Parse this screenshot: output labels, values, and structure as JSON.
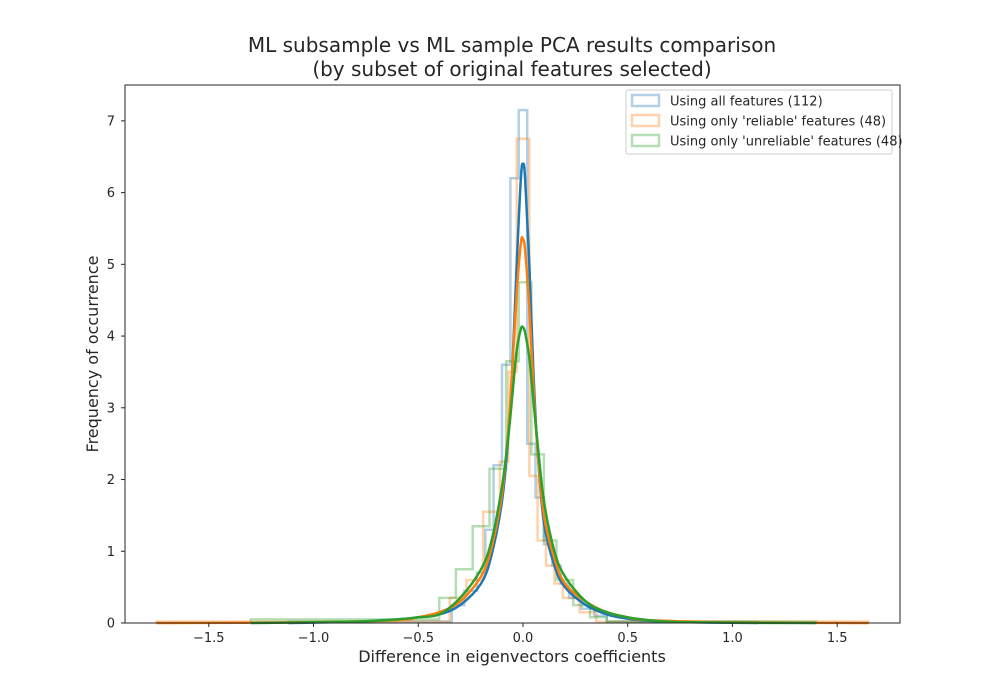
{
  "chart_data": {
    "type": "line",
    "title": [
      "ML subsample vs ML sample PCA results comparison",
      "(by subset of original features selected)"
    ],
    "xlabel": "Difference in eigenvectors coefficients",
    "ylabel": "Frequency of occurrence",
    "xlim": [
      -1.9,
      1.8
    ],
    "ylim": [
      0,
      7.5
    ],
    "xticks": [
      -1.5,
      -1.0,
      -0.5,
      0.0,
      0.5,
      1.0,
      1.5
    ],
    "xtick_labels": [
      "−1.5",
      "−1.0",
      "−0.5",
      "0.0",
      "0.5",
      "1.0",
      "1.5"
    ],
    "yticks": [
      0,
      1,
      2,
      3,
      4,
      5,
      6,
      7
    ],
    "ytick_labels": [
      "0",
      "1",
      "2",
      "3",
      "4",
      "5",
      "6",
      "7"
    ],
    "grid": false,
    "legend_position": "top-right",
    "series": [
      {
        "name": "Using all features (112)",
        "color": "#1f77b4",
        "hist": {
          "edges": [
            -1.12,
            -0.34,
            -0.28,
            -0.22,
            -0.18,
            -0.14,
            -0.1,
            -0.06,
            -0.02,
            0.02,
            0.06,
            0.1,
            0.14,
            0.18,
            0.22,
            0.28,
            0.34,
            0.4,
            1.12
          ],
          "heights": [
            0.02,
            0.25,
            0.45,
            0.7,
            1.3,
            2.2,
            3.6,
            6.2,
            7.15,
            2.5,
            1.75,
            1.1,
            0.8,
            0.55,
            0.35,
            0.2,
            0.1,
            0.02
          ]
        },
        "kde": {
          "x": [
            -1.12,
            -0.8,
            -0.6,
            -0.5,
            -0.4,
            -0.3,
            -0.2,
            -0.15,
            -0.1,
            -0.07,
            -0.05,
            -0.03,
            -0.01,
            0.0,
            0.01,
            0.03,
            0.05,
            0.07,
            0.1,
            0.15,
            0.2,
            0.3,
            0.4,
            0.5,
            0.6,
            0.8,
            1.12
          ],
          "y": [
            0.0,
            0.02,
            0.05,
            0.08,
            0.12,
            0.25,
            0.55,
            0.95,
            1.7,
            2.6,
            3.6,
            5.0,
            6.2,
            6.4,
            6.2,
            5.0,
            3.5,
            2.4,
            1.4,
            0.8,
            0.5,
            0.25,
            0.12,
            0.06,
            0.03,
            0.01,
            0.0
          ]
        }
      },
      {
        "name": "Using only 'reliable' features (48)",
        "color": "#ff7f0e",
        "hist": {
          "edges": [
            -1.75,
            -0.35,
            -0.27,
            -0.19,
            -0.11,
            -0.07,
            -0.03,
            0.03,
            0.07,
            0.11,
            0.15,
            0.19,
            0.27,
            0.35,
            1.65
          ],
          "heights": [
            0.02,
            0.35,
            0.6,
            1.55,
            2.25,
            3.5,
            6.75,
            2.05,
            1.15,
            0.8,
            0.55,
            0.35,
            0.15,
            0.02
          ]
        },
        "kde": {
          "x": [
            -1.75,
            -1.0,
            -0.6,
            -0.5,
            -0.4,
            -0.3,
            -0.2,
            -0.15,
            -0.1,
            -0.07,
            -0.05,
            -0.03,
            -0.01,
            0.0,
            0.01,
            0.03,
            0.05,
            0.07,
            0.1,
            0.15,
            0.2,
            0.3,
            0.4,
            0.5,
            0.6,
            1.0,
            1.65
          ],
          "y": [
            0.0,
            0.01,
            0.04,
            0.08,
            0.15,
            0.3,
            0.65,
            1.05,
            1.8,
            2.7,
            3.6,
            4.6,
            5.3,
            5.35,
            5.2,
            4.4,
            3.3,
            2.4,
            1.5,
            0.9,
            0.55,
            0.3,
            0.15,
            0.08,
            0.04,
            0.01,
            0.0
          ]
        }
      },
      {
        "name": "Using only 'unreliable' features (48)",
        "color": "#2ca02c",
        "hist": {
          "edges": [
            -1.3,
            -0.4,
            -0.32,
            -0.24,
            -0.16,
            -0.08,
            -0.02,
            0.04,
            0.1,
            0.16,
            0.24,
            0.32,
            0.4,
            1.4
          ],
          "heights": [
            0.05,
            0.35,
            0.75,
            1.35,
            2.15,
            3.65,
            4.75,
            2.35,
            1.15,
            0.6,
            0.25,
            0.08,
            0.02
          ]
        },
        "kde": {
          "x": [
            -1.3,
            -0.8,
            -0.6,
            -0.5,
            -0.4,
            -0.3,
            -0.2,
            -0.15,
            -0.1,
            -0.07,
            -0.05,
            -0.03,
            -0.01,
            0.0,
            0.01,
            0.03,
            0.05,
            0.07,
            0.1,
            0.15,
            0.2,
            0.3,
            0.4,
            0.5,
            0.6,
            0.8,
            1.4
          ],
          "y": [
            0.0,
            0.02,
            0.05,
            0.08,
            0.12,
            0.35,
            0.75,
            1.15,
            1.9,
            2.6,
            3.2,
            3.8,
            4.1,
            4.12,
            4.05,
            3.7,
            3.1,
            2.5,
            1.7,
            1.0,
            0.65,
            0.3,
            0.15,
            0.08,
            0.04,
            0.01,
            0.0
          ]
        }
      }
    ]
  }
}
